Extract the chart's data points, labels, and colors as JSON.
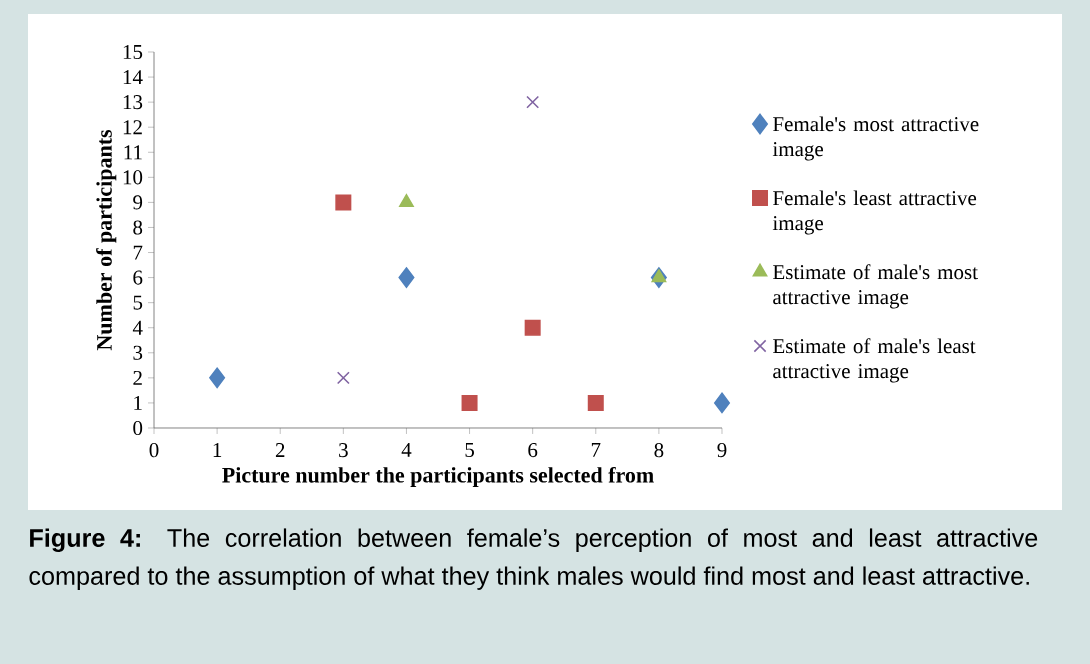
{
  "chart_data": {
    "type": "scatter",
    "xlabel": "Picture number the participants selected from",
    "ylabel": "Number of participants",
    "xlim": [
      0,
      9
    ],
    "ylim": [
      0,
      15
    ],
    "xticks": [
      0,
      1,
      2,
      3,
      4,
      5,
      6,
      7,
      8,
      9
    ],
    "yticks": [
      0,
      1,
      2,
      3,
      4,
      5,
      6,
      7,
      8,
      9,
      10,
      11,
      12,
      13,
      14,
      15
    ],
    "grid": false,
    "legend": "right",
    "annotations": [
      "**Figure 4:** The correlation between female’s perception of most and least attractive compared to the assumption of what they think males would find most and least attractive."
    ],
    "series": [
      {
        "name": "Female's most attractive image",
        "color": "#4f81bd",
        "marker": "diamond",
        "x": [
          1,
          4,
          8,
          9
        ],
        "values": [
          2,
          6,
          6,
          1
        ]
      },
      {
        "name": "Female's least attractive image",
        "color": "#c0504d",
        "marker": "square",
        "x": [
          3,
          5,
          6,
          7
        ],
        "values": [
          9,
          1,
          4,
          1
        ]
      },
      {
        "name": "Estimate of male's most attractive image",
        "color": "#9bbb59",
        "marker": "triangle",
        "x": [
          4,
          8
        ],
        "values": [
          9,
          6
        ]
      },
      {
        "name": "Estimate of male's least attractive image",
        "color": "#8064a2",
        "marker": "cross",
        "x": [
          3,
          6
        ],
        "values": [
          2,
          13
        ]
      }
    ]
  }
}
